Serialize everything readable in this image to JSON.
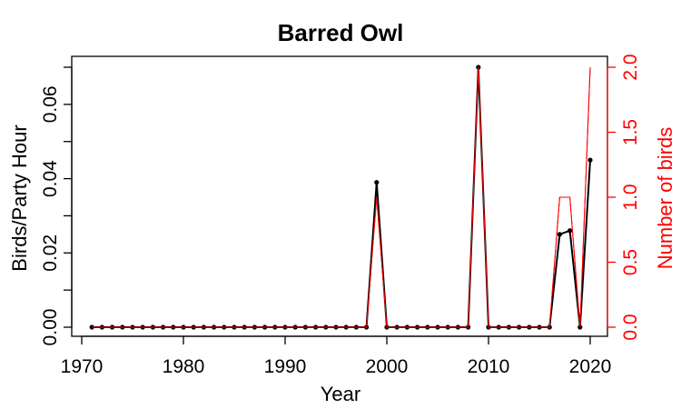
{
  "chart_data": {
    "type": "line",
    "title": "Barred Owl",
    "xlabel": "Year",
    "ylabel": "Birds/Party Hour",
    "y2label": "Number of birds",
    "xlim": [
      1970,
      2020
    ],
    "ylim": [
      0,
      0.07
    ],
    "y2lim": [
      0,
      2.0
    ],
    "xticks": [
      "1970",
      "1980",
      "1990",
      "2000",
      "2010",
      "2020"
    ],
    "yticks": [
      "0.00",
      "0.02",
      "0.04",
      "0.06"
    ],
    "y2ticks": [
      "0.0",
      "0.5",
      "1.0",
      "1.5",
      "2.0"
    ],
    "grid": false,
    "colors": {
      "birds_per_party_hour": "#000000",
      "number_of_birds": "#ff0000",
      "right_axis": "#ff0000"
    },
    "series": [
      {
        "axis": "left",
        "markers": true,
        "x": [
          1971,
          1972,
          1973,
          1974,
          1975,
          1976,
          1977,
          1978,
          1979,
          1980,
          1981,
          1982,
          1983,
          1984,
          1985,
          1986,
          1987,
          1988,
          1989,
          1990,
          1991,
          1992,
          1993,
          1994,
          1995,
          1996,
          1997,
          1998,
          1999,
          2000,
          2001,
          2002,
          2003,
          2004,
          2005,
          2006,
          2007,
          2008,
          2009,
          2010,
          2011,
          2012,
          2013,
          2014,
          2015,
          2016,
          2017,
          2018,
          2019,
          2020
        ],
        "values": [
          0,
          0,
          0,
          0,
          0,
          0,
          0,
          0,
          0,
          0,
          0,
          0,
          0,
          0,
          0,
          0,
          0,
          0,
          0,
          0,
          0,
          0,
          0,
          0,
          0,
          0,
          0,
          0,
          0.039,
          0,
          0,
          0,
          0,
          0,
          0,
          0,
          0,
          0,
          0.07,
          0,
          0,
          0,
          0,
          0,
          0,
          0,
          0.025,
          0.026,
          0,
          0.045
        ]
      },
      {
        "axis": "right",
        "markers": false,
        "x": [
          1971,
          1972,
          1973,
          1974,
          1975,
          1976,
          1977,
          1978,
          1979,
          1980,
          1981,
          1982,
          1983,
          1984,
          1985,
          1986,
          1987,
          1988,
          1989,
          1990,
          1991,
          1992,
          1993,
          1994,
          1995,
          1996,
          1997,
          1998,
          1999,
          2000,
          2001,
          2002,
          2003,
          2004,
          2005,
          2006,
          2007,
          2008,
          2009,
          2010,
          2011,
          2012,
          2013,
          2014,
          2015,
          2016,
          2017,
          2018,
          2019,
          2020
        ],
        "values": [
          0,
          0,
          0,
          0,
          0,
          0,
          0,
          0,
          0,
          0,
          0,
          0,
          0,
          0,
          0,
          0,
          0,
          0,
          0,
          0,
          0,
          0,
          0,
          0,
          0,
          0,
          0,
          0,
          1,
          0,
          0,
          0,
          0,
          0,
          0,
          0,
          0,
          0,
          2,
          0,
          0,
          0,
          0,
          0,
          0,
          0,
          1,
          1,
          0,
          2
        ]
      }
    ]
  }
}
